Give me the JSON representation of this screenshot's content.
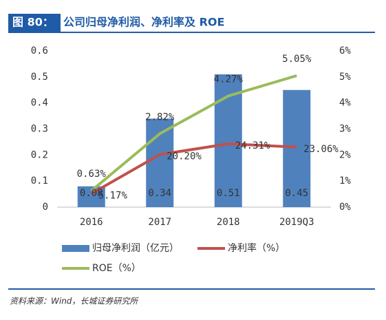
{
  "figure_label": "图 80：",
  "chart_data": {
    "type": "bar",
    "title": "公司归母净利润、净利率及 ROE",
    "categories": [
      "2016",
      "2017",
      "2018",
      "2019Q3"
    ],
    "series": [
      {
        "name": "归母净利润（亿元）",
        "type": "bar",
        "color": "#4f81bd",
        "values": [
          0.08,
          0.34,
          0.51,
          0.45
        ],
        "value_labels": [
          "0.08",
          "0.34",
          "0.51",
          "0.45"
        ]
      },
      {
        "name": "净利率（%）",
        "type": "line",
        "color": "#c0504d",
        "values": [
          0.0517,
          0.202,
          0.2431,
          0.2306
        ],
        "value_labels": [
          "5.17%",
          "20.20%",
          "24.31%",
          "23.06%"
        ]
      },
      {
        "name": "ROE（%）",
        "type": "line",
        "axis": "y2",
        "color": "#9bbb59",
        "values": [
          0.63,
          2.82,
          4.27,
          5.05
        ],
        "value_labels": [
          "0.63%",
          "2.82%",
          "4.27%",
          "5.05%"
        ]
      }
    ],
    "ylim": [
      0,
      0.6
    ],
    "yticks": [
      0,
      0.1,
      0.2,
      0.3,
      0.4,
      0.5,
      0.6
    ],
    "y2lim": [
      0,
      6
    ],
    "y2ticks": [
      {
        "value": 0,
        "label": "0%"
      },
      {
        "value": 1,
        "label": "1%"
      },
      {
        "value": 2,
        "label": "2%"
      },
      {
        "value": 3,
        "label": "3%"
      },
      {
        "value": 4,
        "label": "4%"
      },
      {
        "value": 5,
        "label": "5%"
      },
      {
        "value": 6,
        "label": "6%"
      }
    ]
  },
  "source": "资料来源：Wind，长城证券研究所"
}
